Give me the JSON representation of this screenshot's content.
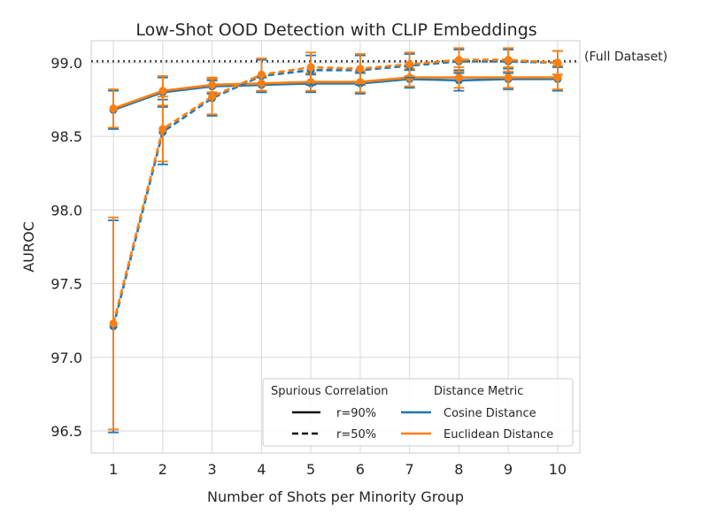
{
  "chart_data": {
    "type": "line",
    "title": "Low-Shot OOD Detection with CLIP Embeddings",
    "xlabel": "Number of Shots per Minority Group",
    "ylabel": "AUROC",
    "x": [
      1,
      2,
      3,
      4,
      5,
      6,
      7,
      8,
      9,
      10
    ],
    "xlim": [
      0.55,
      10.45
    ],
    "ylim": [
      96.35,
      99.15
    ],
    "yticks": [
      96.5,
      97.0,
      97.5,
      98.0,
      98.5,
      99.0
    ],
    "ytick_labels": [
      "96.5",
      "97.0",
      "97.5",
      "98.0",
      "98.5",
      "99.0"
    ],
    "xtick_labels": [
      "1",
      "2",
      "3",
      "4",
      "5",
      "6",
      "7",
      "8",
      "9",
      "10"
    ],
    "grid": true,
    "reference_line": {
      "value": 99.01,
      "label": "(Full Dataset)",
      "style": "dotted",
      "color": "#444444"
    },
    "legend": {
      "placement": "lower-right",
      "group1_title": "Spurious Correlation",
      "group1_entries": [
        {
          "label": "r=90%",
          "style": "solid"
        },
        {
          "label": "r=50%",
          "style": "dashed"
        }
      ],
      "group2_title": "Distance Metric",
      "group2_entries": [
        {
          "label": "Cosine Distance",
          "color": "#1f77b4"
        },
        {
          "label": "Euclidean Distance",
          "color": "#ff7f0e"
        }
      ]
    },
    "series": [
      {
        "metric": "Cosine Distance",
        "correlation": "r=90%",
        "style": "solid",
        "color": "#1f77b4",
        "values": [
          98.68,
          98.8,
          98.84,
          98.85,
          98.86,
          98.86,
          98.89,
          98.88,
          98.89,
          98.89
        ],
        "errors": [
          0.13,
          0.1,
          0.05,
          0.05,
          0.06,
          0.07,
          0.06,
          0.07,
          0.07,
          0.08
        ]
      },
      {
        "metric": "Euclidean Distance",
        "correlation": "r=90%",
        "style": "solid",
        "color": "#ff7f0e",
        "values": [
          98.69,
          98.81,
          98.85,
          98.86,
          98.87,
          98.87,
          98.9,
          98.9,
          98.9,
          98.9
        ],
        "errors": [
          0.13,
          0.1,
          0.05,
          0.05,
          0.06,
          0.07,
          0.06,
          0.07,
          0.07,
          0.08
        ]
      },
      {
        "metric": "Cosine Distance",
        "correlation": "r=50%",
        "style": "dashed",
        "color": "#1f77b4",
        "values": [
          97.21,
          98.53,
          98.76,
          98.91,
          98.95,
          98.95,
          98.98,
          99.01,
          99.01,
          99.0
        ],
        "errors": [
          0.72,
          0.22,
          0.12,
          0.11,
          0.1,
          0.1,
          0.08,
          0.08,
          0.08,
          0.08
        ]
      },
      {
        "metric": "Euclidean Distance",
        "correlation": "r=50%",
        "style": "dashed",
        "color": "#ff7f0e",
        "values": [
          97.23,
          98.55,
          98.77,
          98.92,
          98.97,
          98.96,
          98.99,
          99.02,
          99.02,
          99.0
        ],
        "errors": [
          0.72,
          0.22,
          0.12,
          0.11,
          0.1,
          0.1,
          0.08,
          0.08,
          0.08,
          0.08
        ]
      }
    ]
  }
}
